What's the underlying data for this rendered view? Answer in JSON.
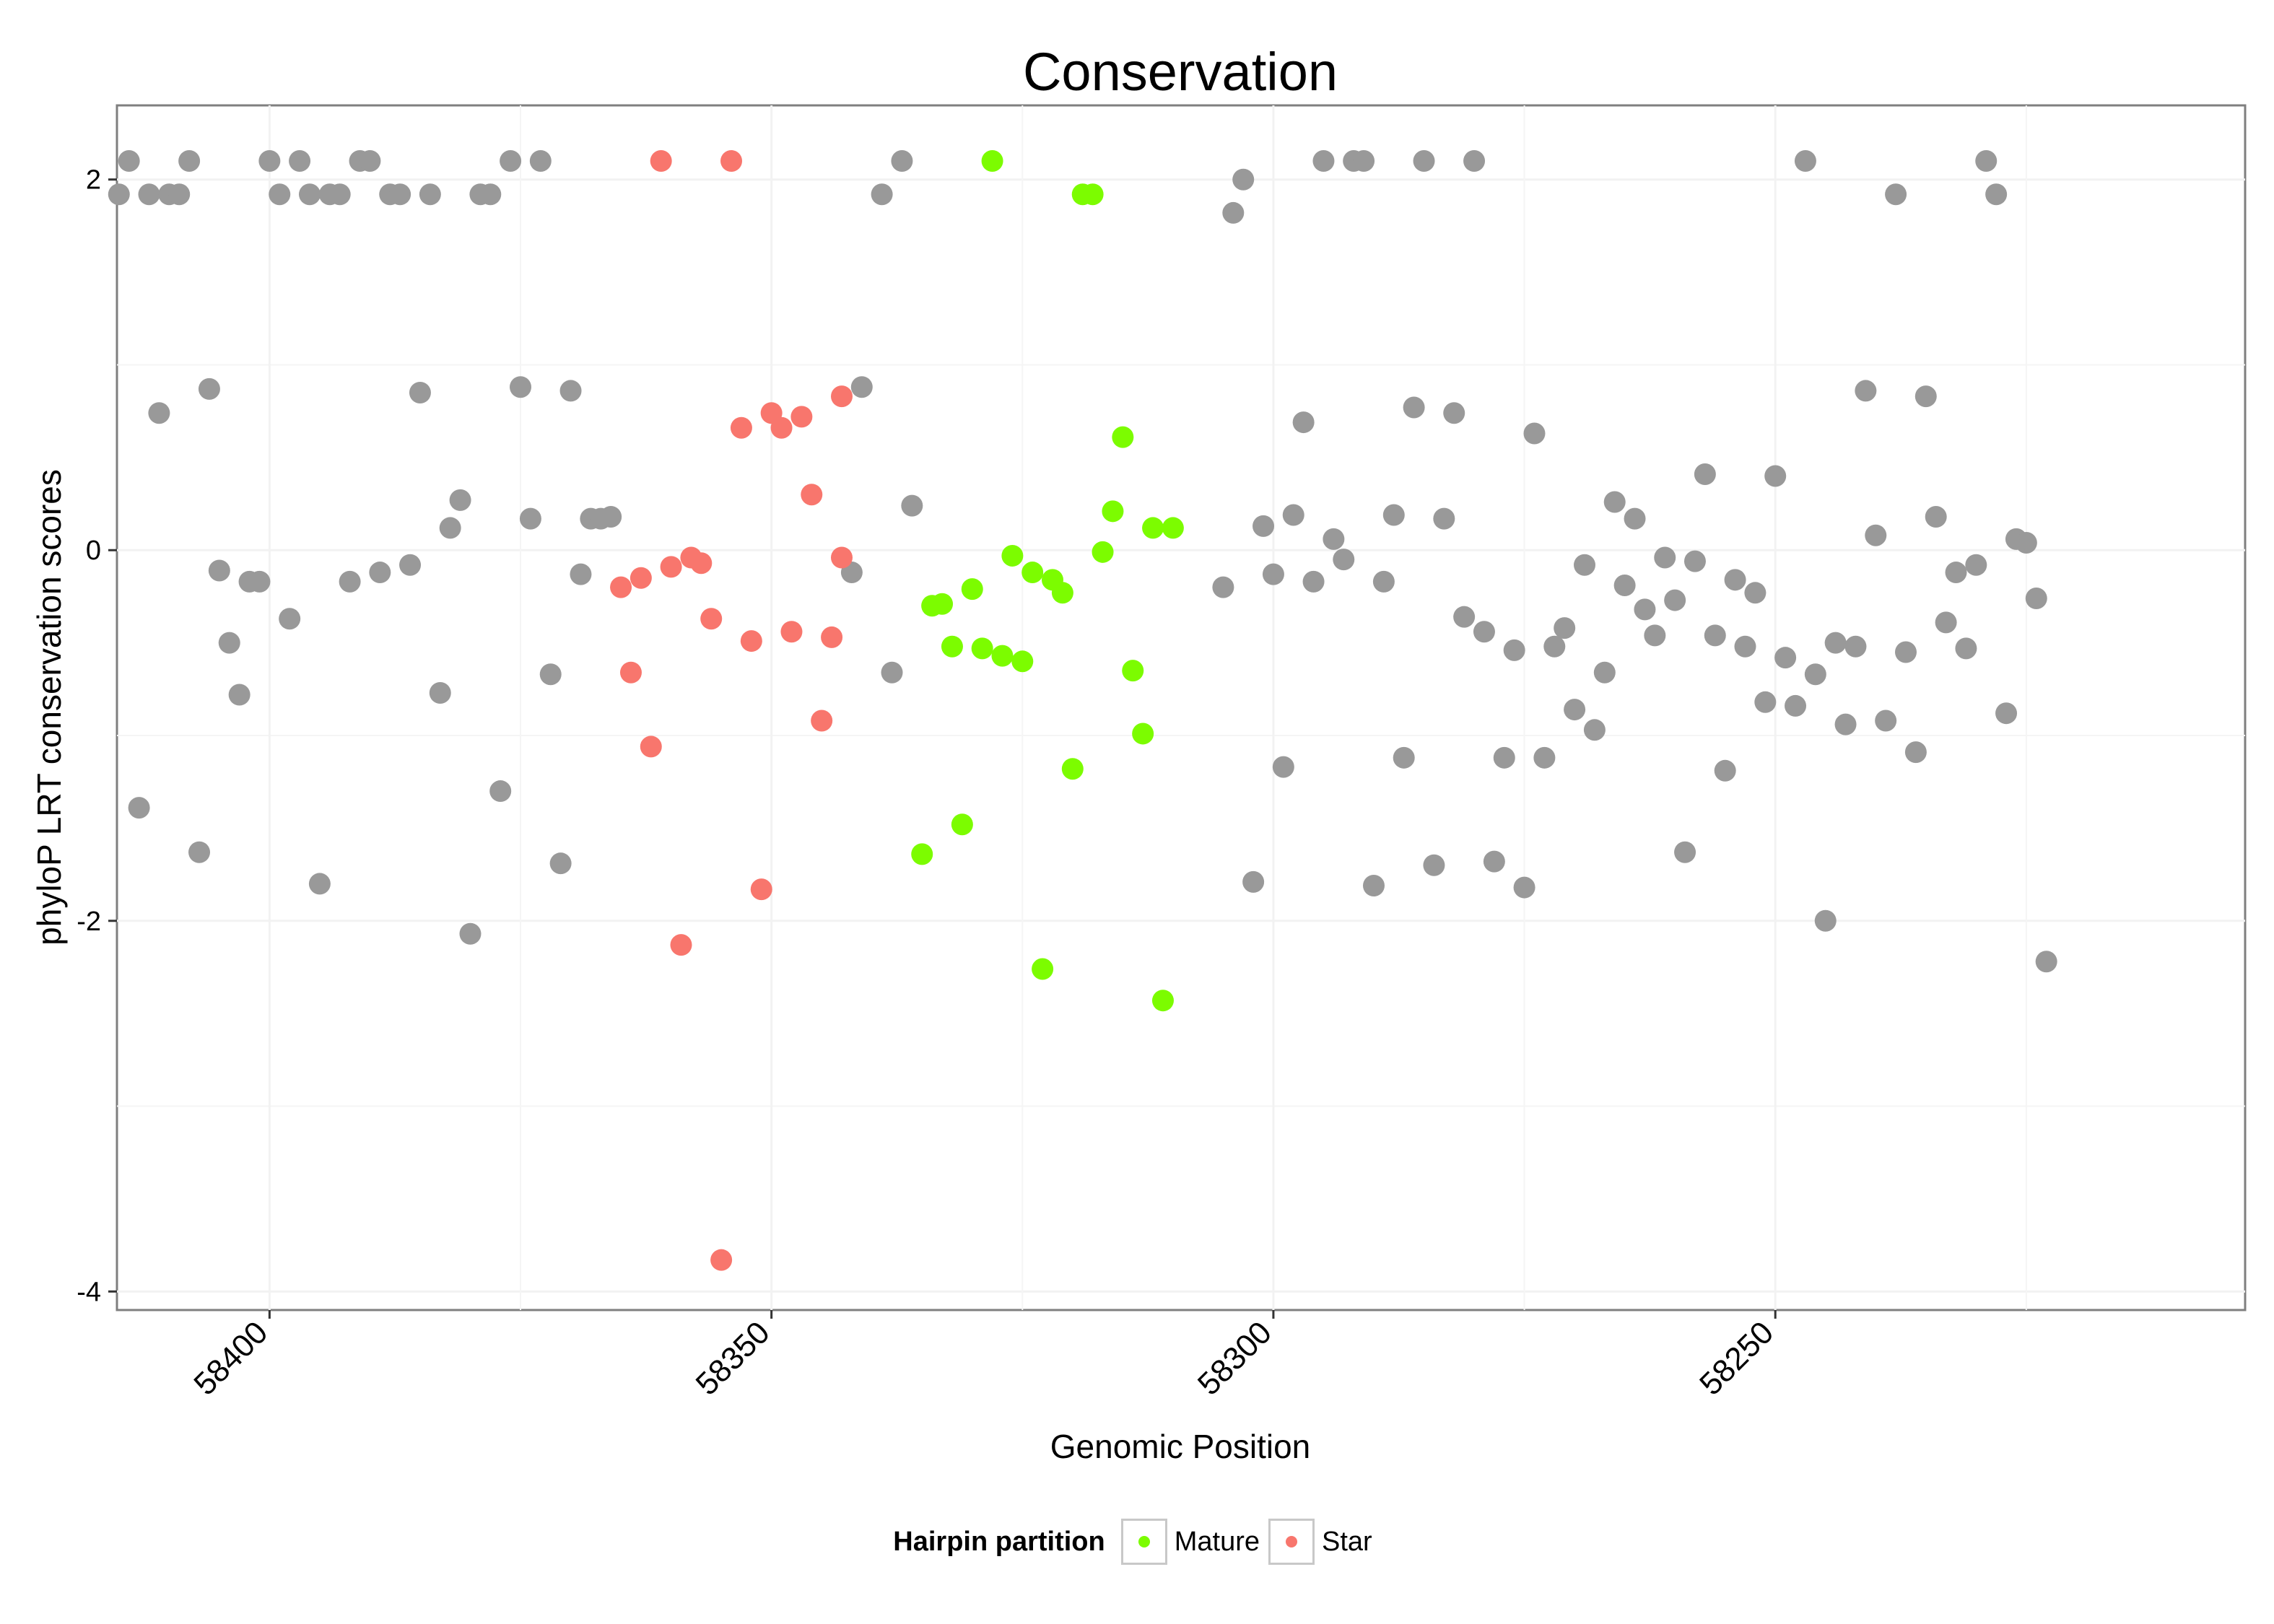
{
  "chart_data": {
    "type": "scatter",
    "title": "Conservation",
    "xlabel": "Genomic Position",
    "ylabel": "phyloP LRT conservation scores",
    "x_reversed": true,
    "xlim": [
      58415.2,
      58203.2
    ],
    "ylim": [
      -4.1,
      2.4
    ],
    "x_ticks": [
      58400,
      58350,
      58300,
      58250
    ],
    "y_ticks": [
      2,
      0,
      -2,
      -4
    ],
    "y_tick_labels": [
      "2",
      "0",
      "-2",
      "-4"
    ],
    "grid": true,
    "legend": {
      "title": "Hairpin partition",
      "placement": "bottom",
      "entries": [
        {
          "name": "Mature",
          "color": "#7cfc00"
        },
        {
          "name": "Star",
          "color": "#f8766d"
        }
      ]
    },
    "series": [
      {
        "name": "Other",
        "color": "#999999",
        "in_legend": false,
        "points": [
          [
            58415,
            1.92
          ],
          [
            58414,
            2.1
          ],
          [
            58413,
            -1.39
          ],
          [
            58412,
            1.92
          ],
          [
            58411,
            0.74
          ],
          [
            58410,
            1.92
          ],
          [
            58409,
            1.92
          ],
          [
            58408,
            2.1
          ],
          [
            58407,
            -1.63
          ],
          [
            58406,
            0.87
          ],
          [
            58405,
            -0.11
          ],
          [
            58404,
            -0.5
          ],
          [
            58403,
            -0.78
          ],
          [
            58402,
            -0.17
          ],
          [
            58401,
            -0.17
          ],
          [
            58400,
            2.1
          ],
          [
            58399,
            1.92
          ],
          [
            58398,
            -0.37
          ],
          [
            58397,
            2.1
          ],
          [
            58396,
            1.92
          ],
          [
            58395,
            -1.8
          ],
          [
            58394,
            1.92
          ],
          [
            58393,
            1.92
          ],
          [
            58392,
            -0.17
          ],
          [
            58391,
            2.1
          ],
          [
            58390,
            2.1
          ],
          [
            58389,
            -0.12
          ],
          [
            58388,
            1.92
          ],
          [
            58387,
            1.92
          ],
          [
            58386,
            -0.08
          ],
          [
            58385,
            0.85
          ],
          [
            58384,
            1.92
          ],
          [
            58383,
            -0.77
          ],
          [
            58382,
            0.12
          ],
          [
            58381,
            0.27
          ],
          [
            58380,
            -2.07
          ],
          [
            58379,
            1.92
          ],
          [
            58378,
            1.92
          ],
          [
            58377,
            -1.3
          ],
          [
            58376,
            2.1
          ],
          [
            58375,
            0.88
          ],
          [
            58374,
            0.17
          ],
          [
            58373,
            2.1
          ],
          [
            58372,
            -0.67
          ],
          [
            58371,
            -1.69
          ],
          [
            58370,
            0.86
          ],
          [
            58369,
            -0.13
          ],
          [
            58368,
            0.17
          ],
          [
            58367,
            0.17
          ],
          [
            58366,
            0.18
          ],
          [
            58342,
            -0.12
          ],
          [
            58341,
            0.88
          ],
          [
            58339,
            1.92
          ],
          [
            58338,
            -0.66
          ],
          [
            58337,
            2.1
          ],
          [
            58336,
            0.24
          ],
          [
            58305,
            -0.2
          ],
          [
            58304,
            1.82
          ],
          [
            58303,
            2.0
          ],
          [
            58302,
            -1.79
          ],
          [
            58301,
            0.13
          ],
          [
            58300,
            -0.13
          ],
          [
            58299,
            -1.17
          ],
          [
            58298,
            0.19
          ],
          [
            58297,
            0.69
          ],
          [
            58296,
            -0.17
          ],
          [
            58295,
            2.1
          ],
          [
            58294,
            0.06
          ],
          [
            58293,
            -0.05
          ],
          [
            58292,
            2.1
          ],
          [
            58291,
            2.1
          ],
          [
            58290,
            -1.81
          ],
          [
            58289,
            -0.17
          ],
          [
            58288,
            0.19
          ],
          [
            58287,
            -1.12
          ],
          [
            58286,
            0.77
          ],
          [
            58285,
            2.1
          ],
          [
            58284,
            -1.7
          ],
          [
            58283,
            0.17
          ],
          [
            58282,
            0.74
          ],
          [
            58281,
            -0.36
          ],
          [
            58280,
            2.1
          ],
          [
            58279,
            -0.44
          ],
          [
            58278,
            -1.68
          ],
          [
            58277,
            -1.12
          ],
          [
            58276,
            -0.54
          ],
          [
            58275,
            -1.82
          ],
          [
            58274,
            0.63
          ],
          [
            58273,
            -1.12
          ],
          [
            58272,
            -0.52
          ],
          [
            58271,
            -0.42
          ],
          [
            58270,
            -0.86
          ],
          [
            58269,
            -0.08
          ],
          [
            58268,
            -0.97
          ],
          [
            58267,
            -0.66
          ],
          [
            58266,
            0.26
          ],
          [
            58265,
            -0.19
          ],
          [
            58264,
            0.17
          ],
          [
            58263,
            -0.32
          ],
          [
            58262,
            -0.46
          ],
          [
            58261,
            -0.04
          ],
          [
            58260,
            -0.27
          ],
          [
            58259,
            -1.63
          ],
          [
            58258,
            -0.06
          ],
          [
            58257,
            0.41
          ],
          [
            58256,
            -0.46
          ],
          [
            58255,
            -1.19
          ],
          [
            58254,
            -0.16
          ],
          [
            58253,
            -0.52
          ],
          [
            58252,
            -0.23
          ],
          [
            58251,
            -0.82
          ],
          [
            58250,
            0.4
          ],
          [
            58249,
            -0.58
          ],
          [
            58248,
            -0.84
          ],
          [
            58247,
            2.1
          ],
          [
            58246,
            -0.67
          ],
          [
            58245,
            -2.0
          ],
          [
            58244,
            -0.5
          ],
          [
            58243,
            -0.94
          ],
          [
            58242,
            -0.52
          ],
          [
            58241,
            0.86
          ],
          [
            58240,
            0.08
          ],
          [
            58239,
            -0.92
          ],
          [
            58238,
            1.92
          ],
          [
            58237,
            -0.55
          ],
          [
            58236,
            -1.09
          ],
          [
            58235,
            0.83
          ],
          [
            58234,
            0.18
          ],
          [
            58233,
            -0.39
          ],
          [
            58232,
            -0.12
          ],
          [
            58231,
            -0.53
          ],
          [
            58230,
            -0.08
          ],
          [
            58229,
            2.1
          ],
          [
            58228,
            1.92
          ],
          [
            58227,
            -0.88
          ],
          [
            58226,
            0.06
          ],
          [
            58225,
            0.04
          ],
          [
            58224,
            -0.26
          ],
          [
            58223,
            -2.22
          ]
        ]
      },
      {
        "name": "Star",
        "color": "#f8766d",
        "in_legend": true,
        "points": [
          [
            58365,
            -0.2
          ],
          [
            58364,
            -0.66
          ],
          [
            58363,
            -0.15
          ],
          [
            58362,
            -1.06
          ],
          [
            58361,
            2.1
          ],
          [
            58360,
            -0.09
          ],
          [
            58359,
            -2.13
          ],
          [
            58358,
            -0.04
          ],
          [
            58357,
            -0.07
          ],
          [
            58356,
            -0.37
          ],
          [
            58355,
            -3.83
          ],
          [
            58354,
            2.1
          ],
          [
            58353,
            0.66
          ],
          [
            58352,
            -0.49
          ],
          [
            58351,
            -1.83
          ],
          [
            58350,
            0.74
          ],
          [
            58349,
            0.66
          ],
          [
            58348,
            -0.44
          ],
          [
            58347,
            0.72
          ],
          [
            58346,
            0.3
          ],
          [
            58345,
            -0.92
          ],
          [
            58344,
            -0.47
          ],
          [
            58343,
            0.83
          ],
          [
            58343,
            -0.04
          ]
        ]
      },
      {
        "name": "Mature",
        "color": "#7cfc00",
        "in_legend": true,
        "points": [
          [
            58335,
            -1.64
          ],
          [
            58334,
            -0.3
          ],
          [
            58333,
            -0.29
          ],
          [
            58332,
            -0.52
          ],
          [
            58331,
            -1.48
          ],
          [
            58330,
            -0.21
          ],
          [
            58329,
            -0.53
          ],
          [
            58328,
            2.1
          ],
          [
            58327,
            -0.57
          ],
          [
            58326,
            -0.03
          ],
          [
            58325,
            -0.6
          ],
          [
            58324,
            -0.12
          ],
          [
            58323,
            -2.26
          ],
          [
            58322,
            -0.16
          ],
          [
            58321,
            -0.23
          ],
          [
            58320,
            -1.18
          ],
          [
            58319,
            1.92
          ],
          [
            58318,
            1.92
          ],
          [
            58317,
            -0.01
          ],
          [
            58316,
            0.21
          ],
          [
            58315,
            0.61
          ],
          [
            58314,
            -0.65
          ],
          [
            58313,
            -0.99
          ],
          [
            58312,
            0.12
          ],
          [
            58311,
            -2.43
          ],
          [
            58310,
            0.12
          ]
        ]
      }
    ]
  }
}
